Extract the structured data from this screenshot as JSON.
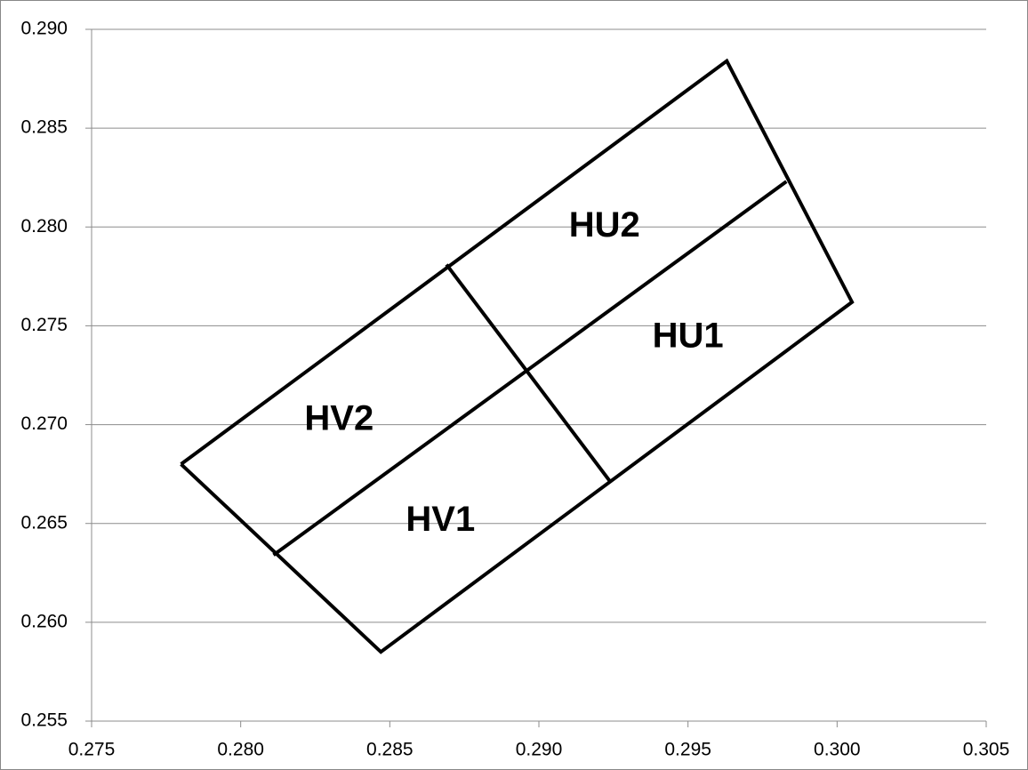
{
  "chart_data": {
    "type": "line",
    "series": [
      {
        "color": "#000000",
        "x": [
          0.278,
          0.2963,
          0.3005,
          0.2847,
          0.278
        ],
        "y": [
          0.268,
          0.2884,
          0.2762,
          0.2585,
          0.268
        ]
      },
      {
        "color": "#000000",
        "x": [
          0.2811,
          0.2983
        ],
        "y": [
          0.2634,
          0.2823
        ]
      },
      {
        "color": "#000000",
        "x": [
          0.2869,
          0.2924
        ],
        "y": [
          0.2781,
          0.2671
        ]
      }
    ],
    "annotations": [
      {
        "text": "HU2",
        "x": 0.2922,
        "y": 0.28
      },
      {
        "text": "HU1",
        "x": 0.295,
        "y": 0.2744
      },
      {
        "text": "HV2",
        "x": 0.2833,
        "y": 0.2702
      },
      {
        "text": "HV1",
        "x": 0.2867,
        "y": 0.2651
      }
    ],
    "xlim": [
      0.275,
      0.305
    ],
    "ylim": [
      0.255,
      0.29
    ],
    "xticks": [
      {
        "value": 0.275,
        "label": "0.275"
      },
      {
        "value": 0.28,
        "label": "0.280"
      },
      {
        "value": 0.285,
        "label": "0.285"
      },
      {
        "value": 0.29,
        "label": "0.290"
      },
      {
        "value": 0.295,
        "label": "0.295"
      },
      {
        "value": 0.3,
        "label": "0.300"
      },
      {
        "value": 0.305,
        "label": "0.305"
      }
    ],
    "yticks": [
      {
        "value": 0.255,
        "label": "0.255"
      },
      {
        "value": 0.26,
        "label": "0.260"
      },
      {
        "value": 0.265,
        "label": "0.265"
      },
      {
        "value": 0.27,
        "label": "0.270"
      },
      {
        "value": 0.275,
        "label": "0.275"
      },
      {
        "value": 0.28,
        "label": "0.280"
      },
      {
        "value": 0.285,
        "label": "0.285"
      },
      {
        "value": 0.29,
        "label": "0.290"
      }
    ],
    "grid": true
  }
}
